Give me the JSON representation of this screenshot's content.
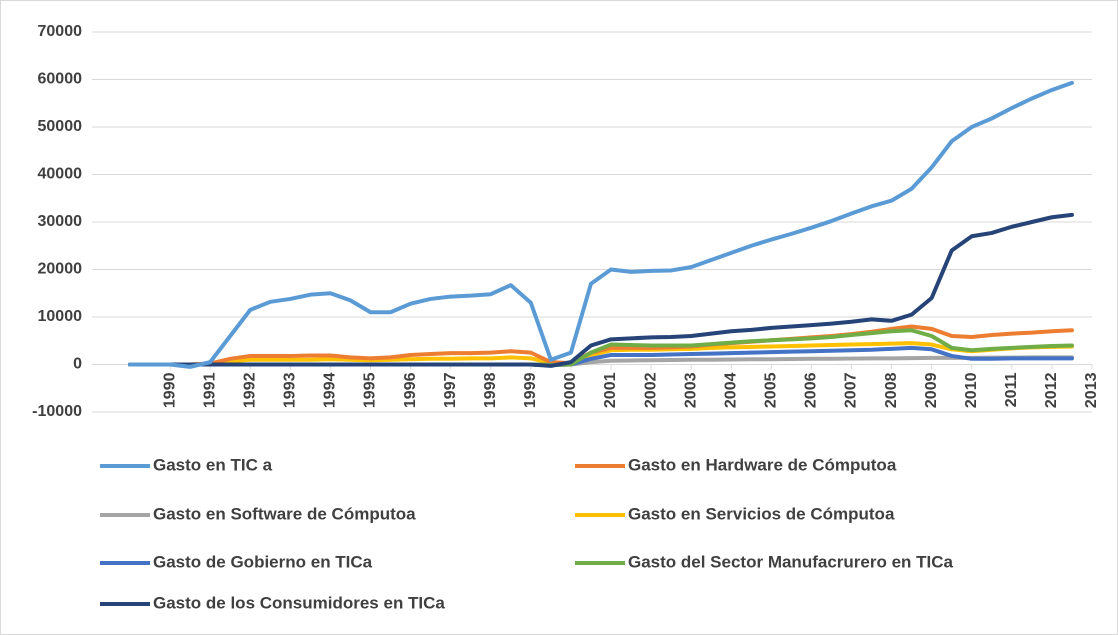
{
  "chart_data": {
    "type": "line",
    "x": [
      1989,
      1989.5,
      1990,
      1990.5,
      1991,
      1991.5,
      1992,
      1992.5,
      1993,
      1993.5,
      1994,
      1994.5,
      1995,
      1995.5,
      1996,
      1996.5,
      1997,
      1997.5,
      1998,
      1998.5,
      1999,
      1999.5,
      2000,
      2000.5,
      2001,
      2001.5,
      2002,
      2002.5,
      2003,
      2003.5,
      2004,
      2004.5,
      2005,
      2005.5,
      2006,
      2006.5,
      2007,
      2007.5,
      2008,
      2008.5,
      2009,
      2009.5,
      2010,
      2010.5,
      2011,
      2011.5,
      2012,
      2012.5
    ],
    "xlim": [
      1989,
      2013
    ],
    "xticks": [
      1990,
      1991,
      1992,
      1993,
      1994,
      1995,
      1996,
      1997,
      1998,
      1999,
      2000,
      2001,
      2002,
      2003,
      2004,
      2005,
      2006,
      2007,
      2008,
      2009,
      2010,
      2011,
      2012,
      2013
    ],
    "ylim": [
      -10000,
      70000
    ],
    "yticks": [
      -10000,
      0,
      10000,
      20000,
      30000,
      40000,
      50000,
      60000,
      70000
    ],
    "grid": true,
    "legend": "bottom",
    "series": [
      {
        "name": "Gasto en TIC a",
        "color": "#5b9bd5",
        "values": [
          0,
          0,
          0,
          -500,
          500,
          6000,
          11500,
          13200,
          13800,
          14700,
          15000,
          13500,
          11000,
          11000,
          12800,
          13800,
          14300,
          14500,
          14800,
          16700,
          13000,
          1000,
          2500,
          17000,
          20000,
          19500,
          19700,
          19800,
          20500,
          22000,
          23500,
          25000,
          26300,
          27500,
          28800,
          30200,
          31800,
          33300,
          34500,
          37000,
          41500,
          47000,
          50000,
          51800,
          54000,
          56000,
          57800,
          59300
        ]
      },
      {
        "name": "Gasto en Hardware de Cómputoa",
        "color": "#ed7d31",
        "values": [
          0,
          0,
          0,
          0,
          200,
          1200,
          1800,
          1800,
          1800,
          1900,
          1900,
          1500,
          1300,
          1500,
          2000,
          2200,
          2400,
          2400,
          2500,
          2800,
          2500,
          500,
          300,
          2500,
          3500,
          3500,
          3500,
          3600,
          3800,
          4200,
          4500,
          4800,
          5100,
          5400,
          5700,
          6000,
          6400,
          6900,
          7500,
          8000,
          7500,
          6000,
          5800,
          6200,
          6500,
          6700,
          7000,
          7200
        ]
      },
      {
        "name": "Gasto en Software de Cómputoa",
        "color": "#a5a5a5",
        "values": [
          0,
          0,
          0,
          0,
          0,
          0,
          0,
          0,
          0,
          0,
          0,
          0,
          0,
          0,
          0,
          0,
          0,
          0,
          0,
          0,
          0,
          -100,
          0,
          500,
          800,
          850,
          900,
          950,
          1000,
          1000,
          1050,
          1100,
          1100,
          1150,
          1200,
          1200,
          1250,
          1300,
          1300,
          1350,
          1400,
          1400,
          1400,
          1450,
          1450,
          1500,
          1500,
          1500
        ]
      },
      {
        "name": "Gasto en Servicios de Cómputoa",
        "color": "#ffc000",
        "values": [
          0,
          0,
          0,
          0,
          100,
          700,
          1000,
          1000,
          1000,
          1000,
          1100,
          1000,
          900,
          1000,
          1100,
          1200,
          1200,
          1300,
          1300,
          1500,
          1300,
          300,
          200,
          2000,
          3000,
          3100,
          3100,
          3200,
          3300,
          3500,
          3600,
          3700,
          3800,
          3900,
          4000,
          4100,
          4200,
          4300,
          4400,
          4500,
          4200,
          3200,
          2800,
          3100,
          3400,
          3600,
          3700,
          3800
        ]
      },
      {
        "name": "Gasto de Gobierno en TICa",
        "color": "#4472c4",
        "values": [
          0,
          0,
          0,
          0,
          0,
          0,
          0,
          0,
          0,
          0,
          0,
          0,
          0,
          0,
          0,
          0,
          0,
          0,
          0,
          0,
          0,
          -100,
          0,
          1200,
          2000,
          2000,
          2000,
          2100,
          2200,
          2300,
          2400,
          2500,
          2600,
          2700,
          2800,
          2900,
          3000,
          3100,
          3300,
          3500,
          3200,
          1800,
          1200,
          1200,
          1300,
          1300,
          1300,
          1300
        ]
      },
      {
        "name": "Gasto del Sector Manufacrurero en TICa",
        "color": "#70ad47",
        "values": [
          0,
          0,
          0,
          0,
          0,
          0,
          0,
          0,
          0,
          0,
          0,
          0,
          0,
          0,
          0,
          0,
          0,
          0,
          0,
          0,
          0,
          -100,
          0,
          2500,
          4200,
          4100,
          4000,
          4000,
          4000,
          4300,
          4600,
          4900,
          5100,
          5300,
          5500,
          5800,
          6200,
          6600,
          7000,
          7200,
          6000,
          3500,
          3000,
          3300,
          3500,
          3700,
          3900,
          4000
        ]
      },
      {
        "name": "Gasto de los Consumidores en TICa",
        "color": "#264478",
        "values": [
          0,
          0,
          0,
          0,
          0,
          0,
          0,
          0,
          0,
          0,
          0,
          0,
          0,
          0,
          0,
          0,
          0,
          0,
          0,
          0,
          0,
          -300,
          500,
          4000,
          5300,
          5500,
          5700,
          5800,
          6000,
          6500,
          7000,
          7300,
          7700,
          8000,
          8300,
          8600,
          9000,
          9500,
          9200,
          10500,
          14000,
          24000,
          27000,
          27700,
          29000,
          30000,
          31000,
          31500
        ]
      }
    ]
  }
}
